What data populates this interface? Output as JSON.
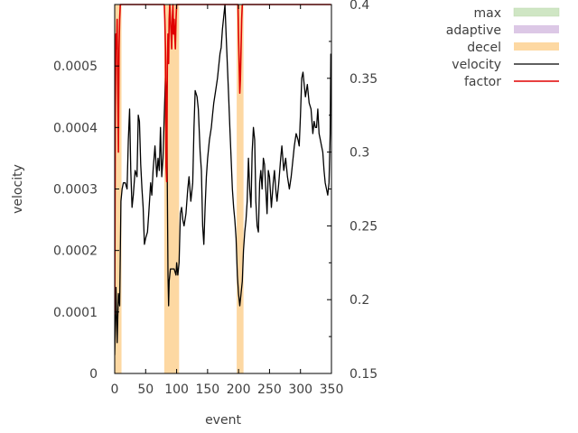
{
  "chart_data": {
    "type": "line",
    "title": "",
    "xlabel": "event",
    "ylabel": "velocity",
    "xlim": [
      0,
      350
    ],
    "ylim": [
      0,
      0.0006
    ],
    "y2lim": [
      0.15,
      0.4
    ],
    "grid": false,
    "legend_position": "top-right, outside plot",
    "x_ticks": [
      "0",
      "50",
      "100",
      "150",
      "200",
      "250",
      "300",
      "350"
    ],
    "y_ticks": [
      "0",
      "0.0001",
      "0.0002",
      "0.0003",
      "0.0004",
      "0.0005"
    ],
    "y2_ticks": [
      "0.15",
      "0.2",
      "0.25",
      "0.3",
      "0.35",
      "0.4"
    ],
    "legend": [
      {
        "name": "max",
        "kind": "fill",
        "color": "#cfe6c4"
      },
      {
        "name": "adaptive",
        "kind": "fill",
        "color": "#dcc8e6"
      },
      {
        "name": "decel",
        "kind": "fill",
        "color": "#fdd8a2"
      },
      {
        "name": "velocity",
        "kind": "line",
        "color": "#000000"
      },
      {
        "name": "factor",
        "kind": "line",
        "color": "#e00000"
      }
    ],
    "decel_bands": [
      [
        0,
        11
      ],
      [
        80,
        104
      ],
      [
        197,
        208
      ]
    ],
    "series": [
      {
        "name": "velocity",
        "axis": "y",
        "color": "#000000",
        "points": [
          [
            0,
            3e-05
          ],
          [
            2,
            0.00014
          ],
          [
            4,
            5e-05
          ],
          [
            6,
            0.00013
          ],
          [
            8,
            0.00011
          ],
          [
            10,
            0.00028
          ],
          [
            12,
            0.0003
          ],
          [
            14,
            0.00031
          ],
          [
            17,
            0.00031
          ],
          [
            20,
            0.0003
          ],
          [
            22,
            0.00038
          ],
          [
            24,
            0.00043
          ],
          [
            26,
            0.00033
          ],
          [
            28,
            0.00027
          ],
          [
            30,
            0.00029
          ],
          [
            33,
            0.00033
          ],
          [
            36,
            0.00032
          ],
          [
            38,
            0.00042
          ],
          [
            40,
            0.00041
          ],
          [
            42,
            0.00034
          ],
          [
            44,
            0.0003
          ],
          [
            46,
            0.00027
          ],
          [
            48,
            0.00021
          ],
          [
            50,
            0.00022
          ],
          [
            53,
            0.00023
          ],
          [
            55,
            0.00026
          ],
          [
            58,
            0.00031
          ],
          [
            60,
            0.00029
          ],
          [
            62,
            0.00033
          ],
          [
            65,
            0.00037
          ],
          [
            68,
            0.00032
          ],
          [
            70,
            0.00035
          ],
          [
            72,
            0.00033
          ],
          [
            74,
            0.0004
          ],
          [
            76,
            0.00032
          ],
          [
            78,
            0.00035
          ],
          [
            80,
            0.00042
          ],
          [
            82,
            0.00048
          ],
          [
            84,
            0.00045
          ],
          [
            85,
            0.0003
          ],
          [
            86,
            0.00016
          ],
          [
            87,
            0.00011
          ],
          [
            88,
            0.00015
          ],
          [
            90,
            0.00017
          ],
          [
            93,
            0.00017
          ],
          [
            96,
            0.00017
          ],
          [
            99,
            0.00016
          ],
          [
            100,
            0.00018
          ],
          [
            102,
            0.00016
          ],
          [
            104,
            0.00018
          ],
          [
            106,
            0.00026
          ],
          [
            108,
            0.00027
          ],
          [
            110,
            0.00025
          ],
          [
            112,
            0.00024
          ],
          [
            115,
            0.00026
          ],
          [
            118,
            0.0003
          ],
          [
            120,
            0.00032
          ],
          [
            123,
            0.00028
          ],
          [
            126,
            0.00031
          ],
          [
            128,
            0.0004
          ],
          [
            130,
            0.00046
          ],
          [
            133,
            0.00045
          ],
          [
            135,
            0.00043
          ],
          [
            138,
            0.00036
          ],
          [
            140,
            0.00033
          ],
          [
            142,
            0.00024
          ],
          [
            144,
            0.00021
          ],
          [
            146,
            0.00027
          ],
          [
            148,
            0.00032
          ],
          [
            150,
            0.00035
          ],
          [
            153,
            0.00038
          ],
          [
            156,
            0.0004
          ],
          [
            158,
            0.00042
          ],
          [
            160,
            0.00044
          ],
          [
            163,
            0.00046
          ],
          [
            166,
            0.00048
          ],
          [
            168,
            0.0005
          ],
          [
            170,
            0.00052
          ],
          [
            172,
            0.00053
          ],
          [
            174,
            0.00056
          ],
          [
            176,
            0.00058
          ],
          [
            178,
            0.0006
          ],
          [
            180,
            0.00055
          ],
          [
            182,
            0.0005
          ],
          [
            184,
            0.00045
          ],
          [
            186,
            0.0004
          ],
          [
            188,
            0.00035
          ],
          [
            190,
            0.0003
          ],
          [
            192,
            0.00027
          ],
          [
            194,
            0.00025
          ],
          [
            196,
            0.00022
          ],
          [
            198,
            0.00016
          ],
          [
            200,
            0.00013
          ],
          [
            202,
            0.00011
          ],
          [
            204,
            0.00013
          ],
          [
            206,
            0.00015
          ],
          [
            208,
            0.0002
          ],
          [
            210,
            0.00023
          ],
          [
            212,
            0.00025
          ],
          [
            214,
            0.00028
          ],
          [
            216,
            0.00035
          ],
          [
            218,
            0.0003
          ],
          [
            220,
            0.00027
          ],
          [
            222,
            0.00036
          ],
          [
            224,
            0.0004
          ],
          [
            226,
            0.00038
          ],
          [
            228,
            0.00028
          ],
          [
            230,
            0.00024
          ],
          [
            232,
            0.00023
          ],
          [
            234,
            0.00031
          ],
          [
            236,
            0.00033
          ],
          [
            238,
            0.0003
          ],
          [
            240,
            0.00035
          ],
          [
            242,
            0.00034
          ],
          [
            244,
            0.0003
          ],
          [
            246,
            0.00026
          ],
          [
            248,
            0.00033
          ],
          [
            250,
            0.00032
          ],
          [
            253,
            0.00027
          ],
          [
            256,
            0.00031
          ],
          [
            258,
            0.00033
          ],
          [
            260,
            0.0003
          ],
          [
            262,
            0.00028
          ],
          [
            265,
            0.00031
          ],
          [
            268,
            0.00035
          ],
          [
            270,
            0.00037
          ],
          [
            273,
            0.00033
          ],
          [
            276,
            0.00035
          ],
          [
            279,
            0.00032
          ],
          [
            282,
            0.0003
          ],
          [
            285,
            0.00032
          ],
          [
            288,
            0.00035
          ],
          [
            290,
            0.00037
          ],
          [
            293,
            0.00039
          ],
          [
            296,
            0.00038
          ],
          [
            298,
            0.00037
          ],
          [
            300,
            0.00042
          ],
          [
            302,
            0.00048
          ],
          [
            304,
            0.00049
          ],
          [
            306,
            0.00047
          ],
          [
            308,
            0.00045
          ],
          [
            311,
            0.00047
          ],
          [
            314,
            0.00044
          ],
          [
            317,
            0.00043
          ],
          [
            320,
            0.00039
          ],
          [
            322,
            0.00041
          ],
          [
            324,
            0.0004
          ],
          [
            326,
            0.0004
          ],
          [
            328,
            0.00043
          ],
          [
            330,
            0.00039
          ],
          [
            332,
            0.00038
          ],
          [
            334,
            0.00037
          ],
          [
            336,
            0.00036
          ],
          [
            338,
            0.00033
          ],
          [
            340,
            0.00031
          ],
          [
            342,
            0.0003
          ],
          [
            344,
            0.00029
          ],
          [
            346,
            0.00031
          ],
          [
            348,
            0.00039
          ],
          [
            349,
            0.00052
          ]
        ]
      },
      {
        "name": "factor",
        "axis": "y2",
        "color": "#e00000",
        "points": [
          [
            0,
            0.19
          ],
          [
            1,
            0.33
          ],
          [
            2,
            0.38
          ],
          [
            3,
            0.37
          ],
          [
            4,
            0.39
          ],
          [
            5,
            0.34
          ],
          [
            6,
            0.3
          ],
          [
            7,
            0.37
          ],
          [
            8,
            0.39
          ],
          [
            9,
            0.4
          ],
          [
            12,
            0.4
          ],
          [
            79,
            0.4
          ],
          [
            80,
            0.4
          ],
          [
            81,
            0.39
          ],
          [
            82,
            0.37
          ],
          [
            83,
            0.29
          ],
          [
            84,
            0.28
          ],
          [
            85,
            0.36
          ],
          [
            86,
            0.38
          ],
          [
            87,
            0.36
          ],
          [
            88,
            0.39
          ],
          [
            89,
            0.4
          ],
          [
            90,
            0.39
          ],
          [
            91,
            0.38
          ],
          [
            92,
            0.37
          ],
          [
            93,
            0.39
          ],
          [
            94,
            0.4
          ],
          [
            95,
            0.38
          ],
          [
            96,
            0.39
          ],
          [
            97,
            0.38
          ],
          [
            98,
            0.37
          ],
          [
            99,
            0.39
          ],
          [
            100,
            0.4
          ],
          [
            103,
            0.4
          ],
          [
            199,
            0.4
          ],
          [
            200,
            0.38
          ],
          [
            201,
            0.36
          ],
          [
            202,
            0.34
          ],
          [
            203,
            0.35
          ],
          [
            204,
            0.37
          ],
          [
            205,
            0.39
          ],
          [
            206,
            0.4
          ],
          [
            210,
            0.4
          ],
          [
            349,
            0.4
          ]
        ]
      }
    ]
  }
}
